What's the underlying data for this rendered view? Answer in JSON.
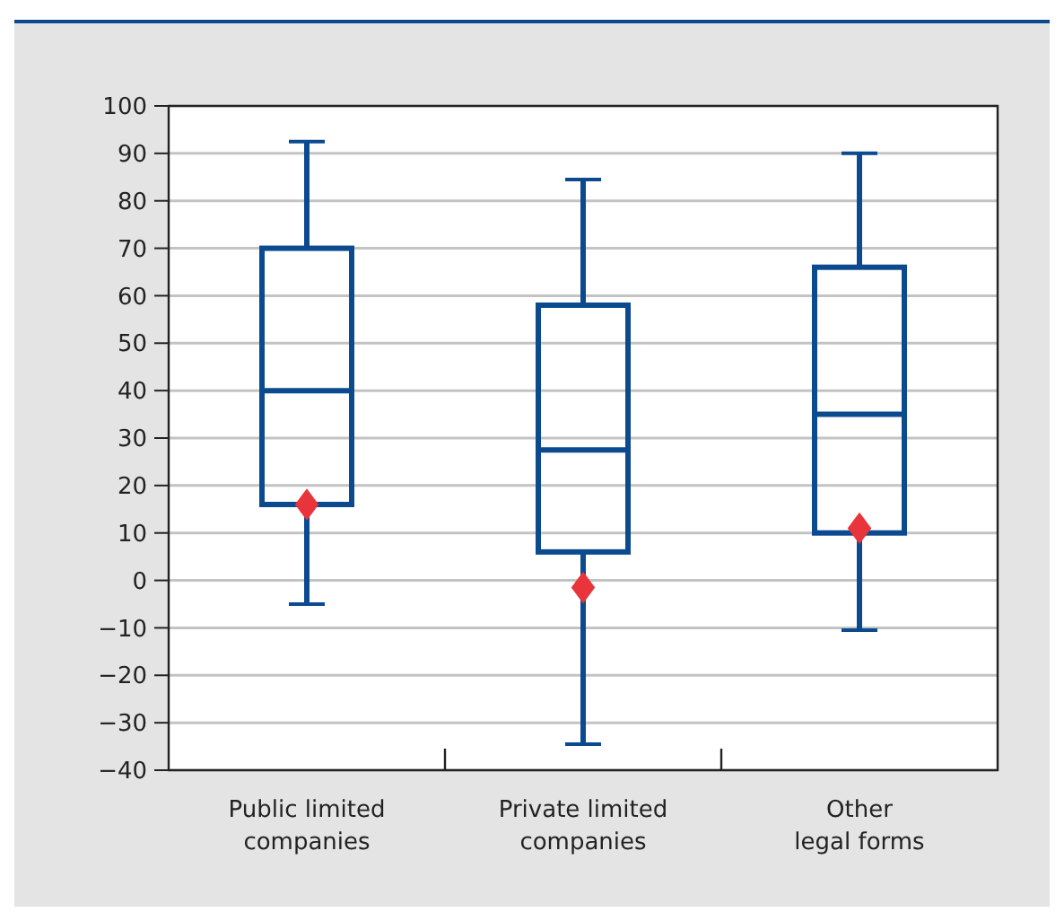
{
  "chart_data": {
    "type": "box",
    "categories": [
      "Public limited\ncompanies",
      "Private limited\ncompanies",
      "Other\nlegal forms"
    ],
    "boxes": [
      {
        "low": -5,
        "q1": 16,
        "median": 40,
        "q3": 70,
        "high": 92.5,
        "mean": 16
      },
      {
        "low": -34.5,
        "q1": 6,
        "median": 27.5,
        "q3": 58,
        "high": 84.5,
        "mean": -1.5
      },
      {
        "low": -10.5,
        "q1": 10,
        "median": 35,
        "q3": 66,
        "high": 90,
        "mean": 11
      }
    ],
    "color": "#0b4a8f",
    "marker": "diamond",
    "ylim": [
      -40,
      100
    ],
    "yticks": [
      -40,
      -30,
      -20,
      -10,
      0,
      10,
      20,
      30,
      40,
      50,
      60,
      70,
      80,
      90,
      100
    ],
    "grid": "y"
  }
}
